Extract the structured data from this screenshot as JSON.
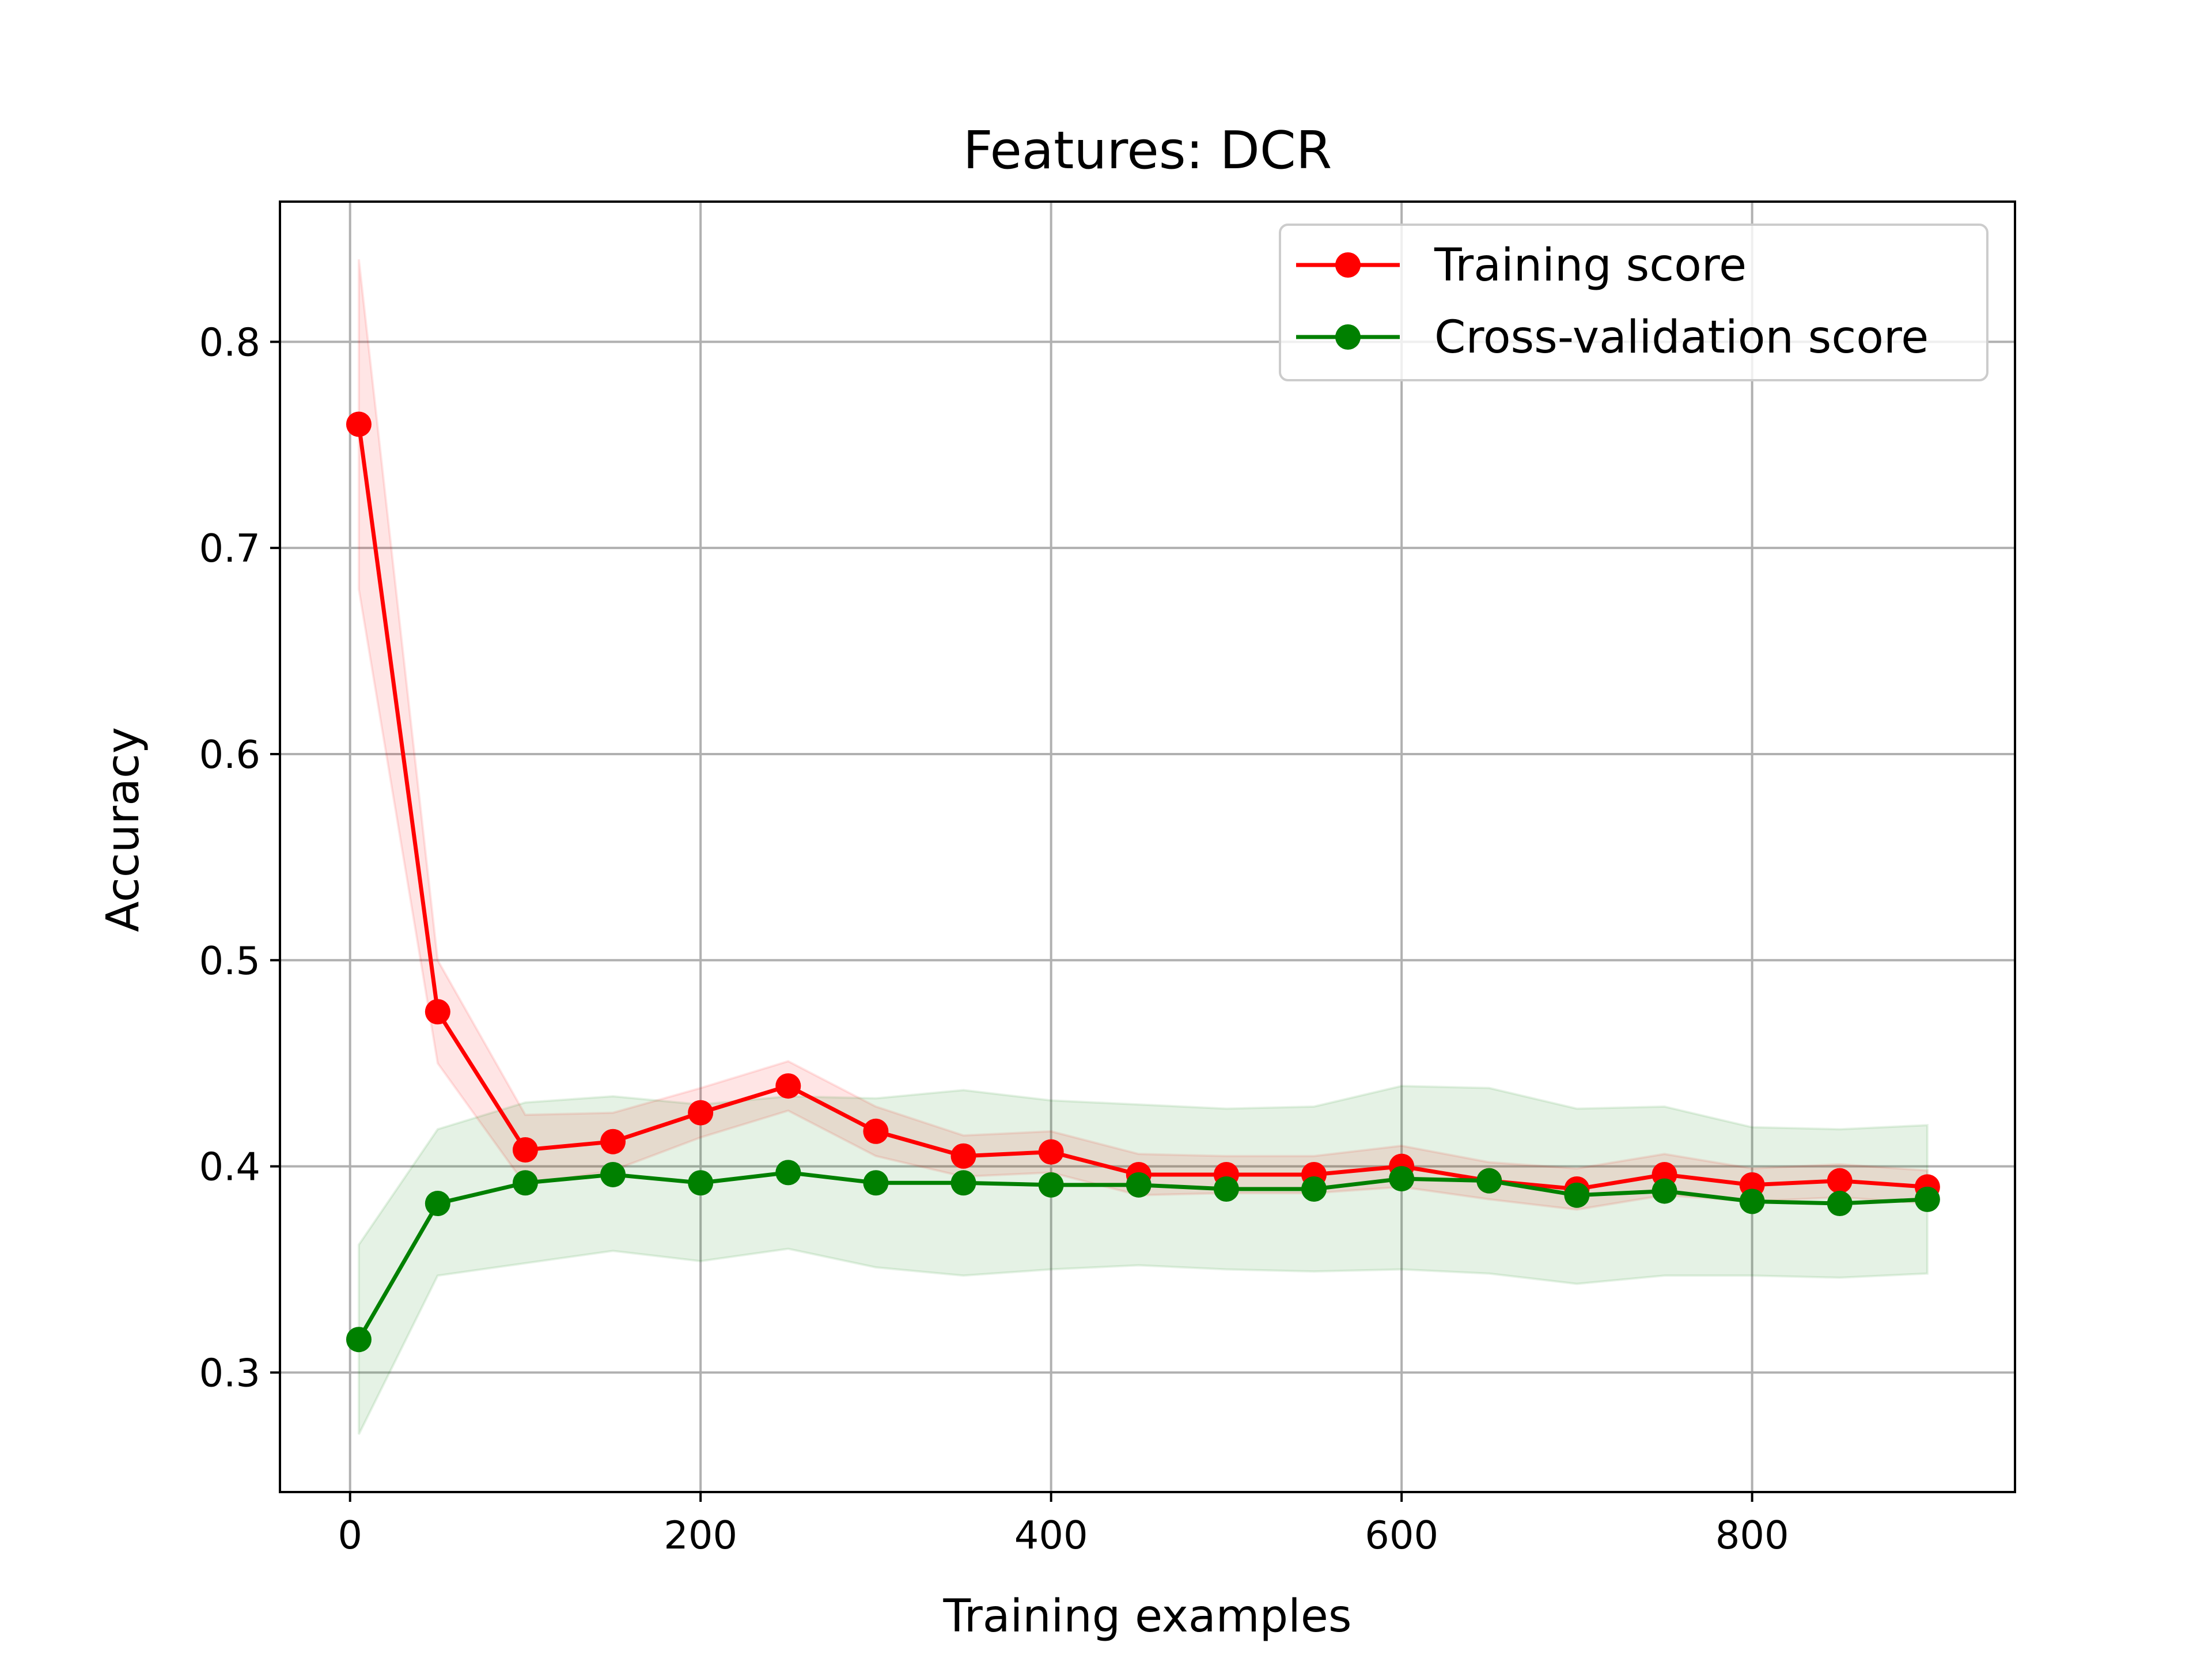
{
  "chart_data": {
    "type": "line",
    "title": "Features: DCR",
    "xlabel": "Training examples",
    "ylabel": "Accuracy",
    "xlim": [
      -40,
      950
    ],
    "ylim": [
      0.242,
      0.868
    ],
    "xticks": [
      0,
      200,
      400,
      600,
      800
    ],
    "xtick_labels": [
      "0",
      "200",
      "400",
      "600",
      "800"
    ],
    "yticks": [
      0.3,
      0.4,
      0.5,
      0.6,
      0.7,
      0.8
    ],
    "ytick_labels": [
      "0.3",
      "0.4",
      "0.5",
      "0.6",
      "0.7",
      "0.8"
    ],
    "grid": true,
    "legend_position": "top-right",
    "x": [
      5,
      50,
      100,
      150,
      200,
      250,
      300,
      350,
      400,
      450,
      500,
      550,
      600,
      650,
      700,
      750,
      800,
      850,
      900
    ],
    "series": [
      {
        "name": "Training score",
        "color": "#ff0000",
        "band_color": "#ff0000",
        "values": [
          0.76,
          0.475,
          0.408,
          0.412,
          0.426,
          0.439,
          0.417,
          0.405,
          0.407,
          0.396,
          0.396,
          0.396,
          0.4,
          0.393,
          0.389,
          0.396,
          0.391,
          0.393,
          0.39
        ],
        "upper": [
          0.84,
          0.5,
          0.425,
          0.426,
          0.438,
          0.451,
          0.429,
          0.415,
          0.417,
          0.406,
          0.405,
          0.405,
          0.41,
          0.402,
          0.399,
          0.406,
          0.399,
          0.401,
          0.398
        ],
        "lower": [
          0.68,
          0.45,
          0.391,
          0.398,
          0.414,
          0.427,
          0.405,
          0.395,
          0.397,
          0.386,
          0.387,
          0.387,
          0.39,
          0.384,
          0.379,
          0.386,
          0.383,
          0.385,
          0.382
        ]
      },
      {
        "name": "Cross-validation score",
        "color": "#008000",
        "band_color": "#008000",
        "values": [
          0.316,
          0.382,
          0.392,
          0.396,
          0.392,
          0.397,
          0.392,
          0.392,
          0.391,
          0.391,
          0.389,
          0.389,
          0.394,
          0.393,
          0.386,
          0.388,
          0.383,
          0.382,
          0.384
        ],
        "upper": [
          0.362,
          0.418,
          0.431,
          0.434,
          0.43,
          0.434,
          0.433,
          0.437,
          0.432,
          0.43,
          0.428,
          0.429,
          0.439,
          0.438,
          0.428,
          0.429,
          0.419,
          0.418,
          0.42
        ],
        "lower": [
          0.27,
          0.347,
          0.353,
          0.359,
          0.354,
          0.36,
          0.351,
          0.347,
          0.35,
          0.352,
          0.35,
          0.349,
          0.35,
          0.348,
          0.343,
          0.347,
          0.347,
          0.346,
          0.348
        ]
      }
    ]
  }
}
